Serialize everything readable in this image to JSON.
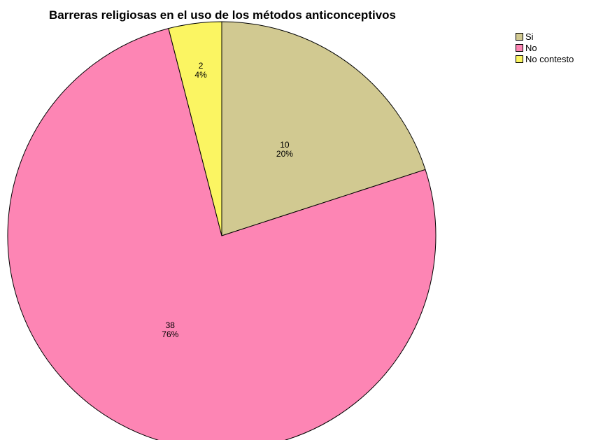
{
  "chart_data": {
    "type": "pie",
    "title": "Barreras religiosas en el uso de los métodos anticonceptivos",
    "categories": [
      "Si",
      "No",
      "No contesto"
    ],
    "values": [
      10,
      38,
      2
    ],
    "percentages": [
      "20%",
      "76%",
      "4%"
    ],
    "colors": [
      "#d1c991",
      "#fd85b4",
      "#fbf562"
    ],
    "legend_position": "top-right",
    "start_angle": "12 o'clock",
    "direction": "clockwise"
  }
}
